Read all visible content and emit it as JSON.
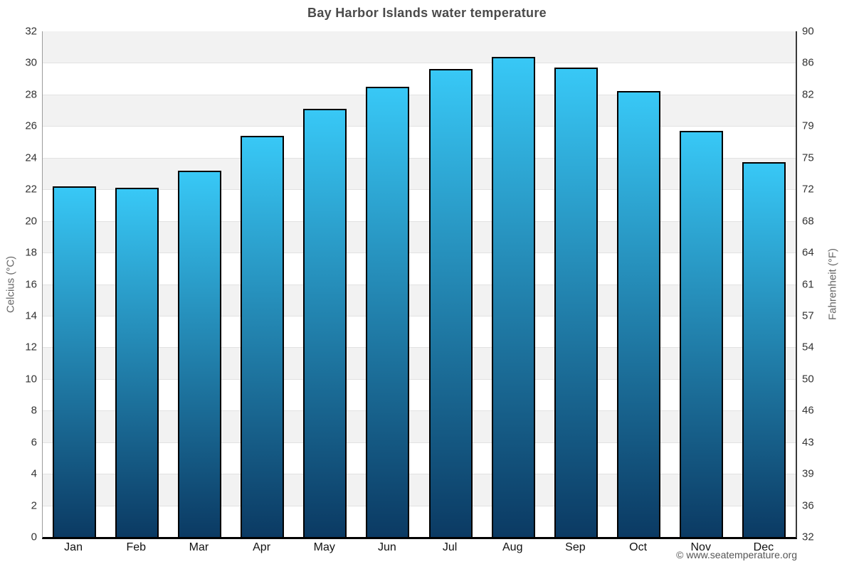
{
  "chart_data": {
    "type": "bar",
    "title": "Bay Harbor Islands water temperature",
    "categories": [
      "Jan",
      "Feb",
      "Mar",
      "Apr",
      "May",
      "Jun",
      "Jul",
      "Aug",
      "Sep",
      "Oct",
      "Nov",
      "Dec"
    ],
    "values": [
      22.2,
      22.1,
      23.2,
      25.4,
      27.1,
      28.5,
      29.6,
      30.4,
      29.7,
      28.2,
      25.7,
      23.7
    ],
    "unit": "°C",
    "ylabel_left": "Celcius (°C)",
    "ylabel_right": "Fahrenheit (°F)",
    "ylim": [
      0,
      32
    ],
    "yticks_left": [
      32,
      30,
      28,
      26,
      24,
      22,
      20,
      18,
      16,
      14,
      12,
      10,
      8,
      6,
      4,
      2,
      0
    ],
    "yticks_right": [
      90,
      86,
      82,
      79,
      75,
      72,
      68,
      64,
      61,
      57,
      54,
      50,
      46,
      43,
      39,
      36,
      32
    ],
    "legend": "none",
    "grid": "horizontal gridlines every 2°C with alternating shaded bands",
    "colors": {
      "bar_top": "#38c8f6",
      "bar_bottom": "#0b3a63",
      "bar_border": "#000000",
      "band": "#f2f2f2",
      "gridline": "#e2e2e2",
      "title_text": "#4a4a4a",
      "tick_text": "#333333",
      "axis_title_text": "#666666"
    }
  },
  "footer": {
    "credit": "© www.seatemperature.org"
  }
}
